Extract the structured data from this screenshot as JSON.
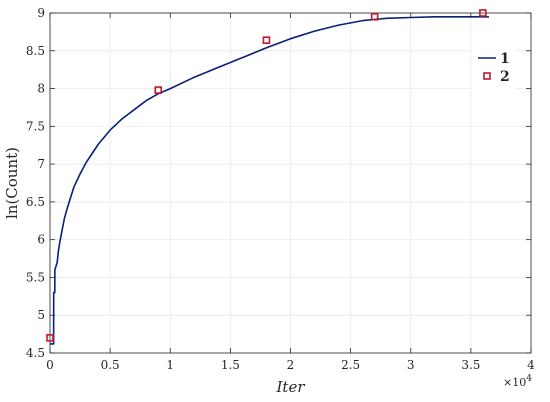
{
  "chart_data": {
    "type": "line",
    "xlabel": "Iter",
    "ylabel": "ln(Count)",
    "x_exponent_label": "×10",
    "x_exponent_power": "4",
    "xlim": [
      0,
      40000
    ],
    "ylim": [
      4.5,
      9
    ],
    "x_ticks": [
      0,
      5000,
      10000,
      15000,
      20000,
      25000,
      30000,
      35000,
      40000
    ],
    "x_tick_labels": [
      "0",
      "0.5",
      "1",
      "1.5",
      "2",
      "2.5",
      "3",
      "3.5",
      "4"
    ],
    "y_ticks": [
      4.5,
      5,
      5.5,
      6,
      6.5,
      7,
      7.5,
      8,
      8.5,
      9
    ],
    "y_tick_labels": [
      "4.5",
      "5",
      "5.5",
      "6",
      "6.5",
      "7",
      "7.5",
      "8",
      "8.5",
      "9"
    ],
    "grid": true,
    "legend_position": "top-right",
    "series": [
      {
        "name": "1",
        "kind": "line",
        "color": "#0a1f7a",
        "x": [
          0,
          300,
          310,
          400,
          410,
          600,
          700,
          800,
          1000,
          1200,
          1500,
          2000,
          2500,
          3000,
          3500,
          4000,
          5000,
          6000,
          7000,
          8000,
          9000,
          10000,
          12000,
          14000,
          16000,
          18000,
          20000,
          22000,
          24000,
          26000,
          28000,
          30000,
          32000,
          34000,
          36500
        ],
        "y": [
          4.62,
          4.62,
          5.3,
          5.3,
          5.6,
          5.7,
          5.85,
          5.95,
          6.12,
          6.28,
          6.45,
          6.7,
          6.87,
          7.02,
          7.14,
          7.26,
          7.45,
          7.6,
          7.72,
          7.84,
          7.93,
          8.0,
          8.15,
          8.28,
          8.41,
          8.54,
          8.66,
          8.76,
          8.84,
          8.9,
          8.93,
          8.94,
          8.95,
          8.95,
          8.95
        ]
      },
      {
        "name": "2",
        "kind": "marker",
        "color": "#c0182b",
        "x": [
          0,
          9000,
          18000,
          27000,
          36000
        ],
        "y": [
          4.7,
          7.98,
          8.64,
          8.95,
          9.0
        ]
      }
    ]
  }
}
